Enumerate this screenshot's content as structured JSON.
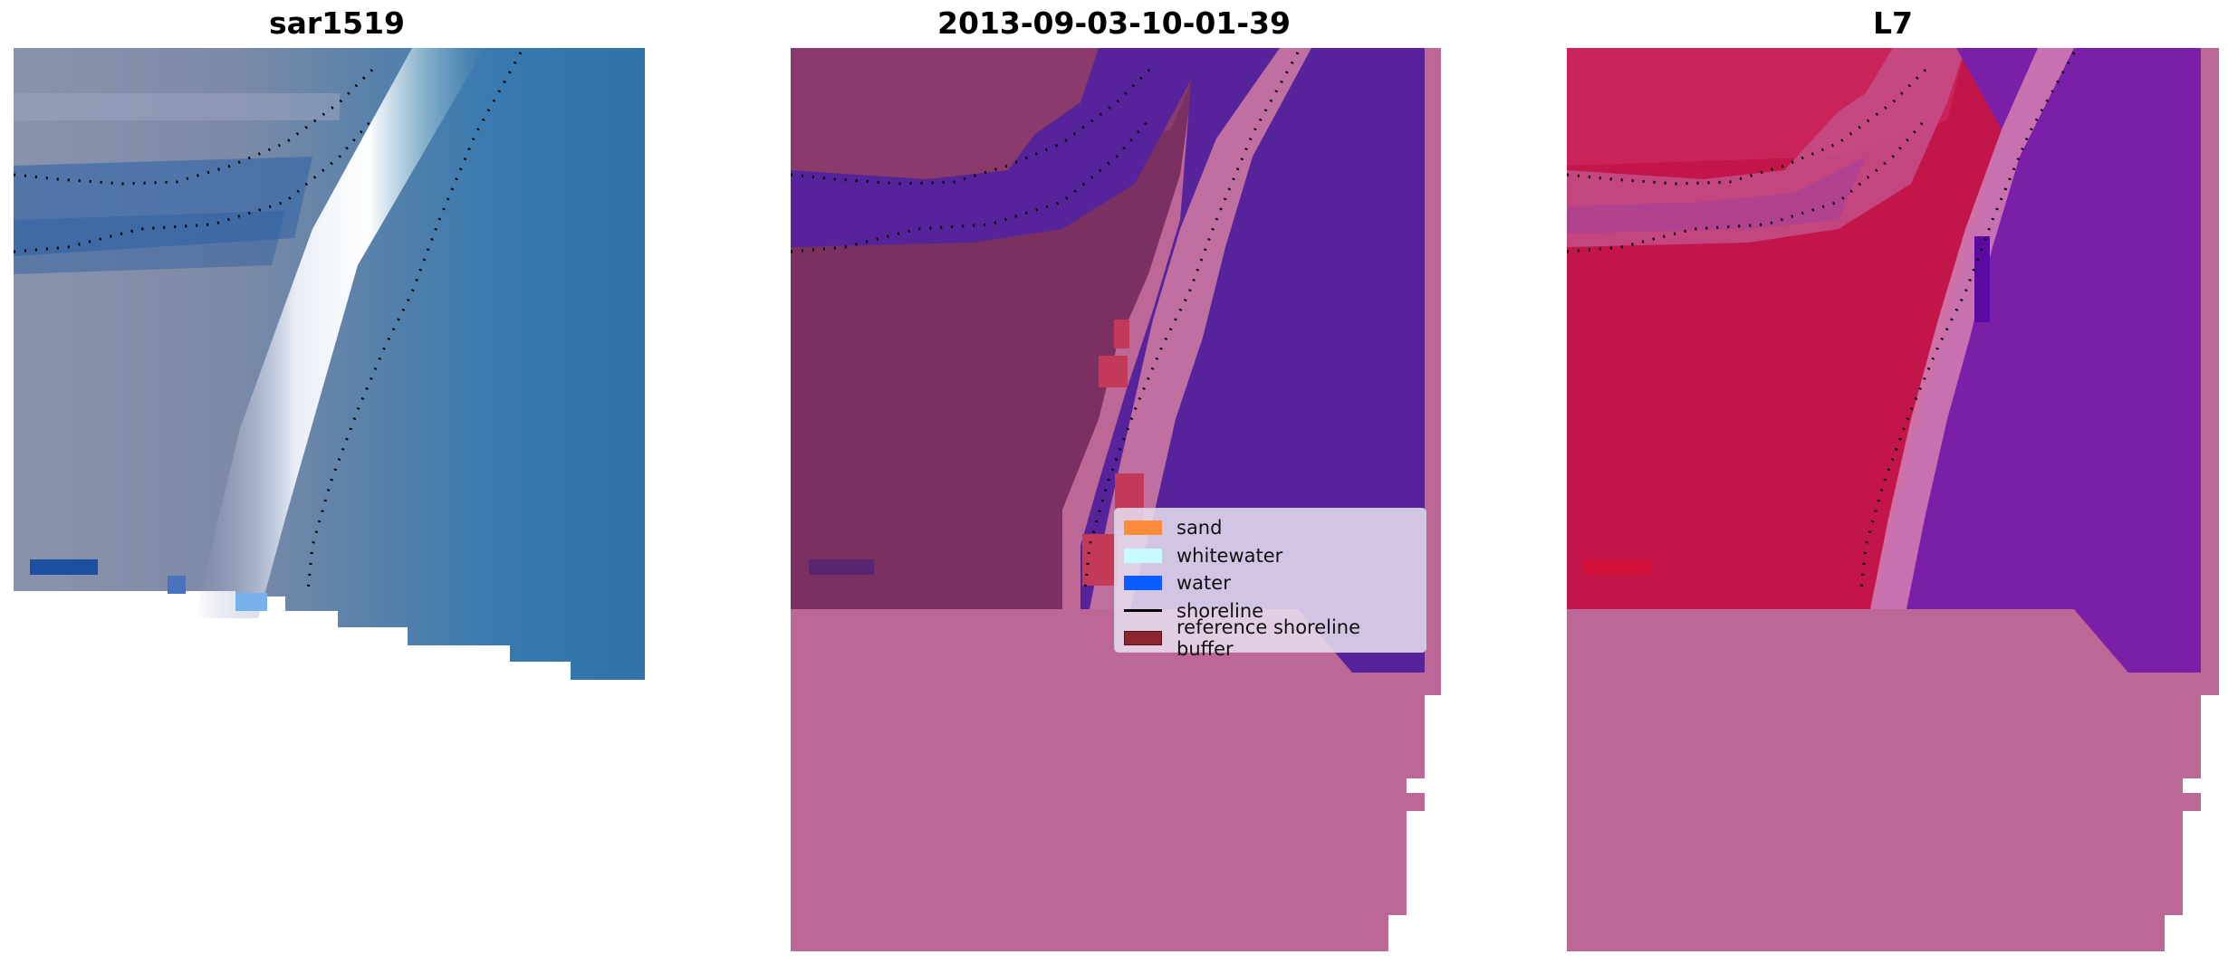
{
  "panels": [
    {
      "title": "sar1519"
    },
    {
      "title": "2013-09-03-10-01-39"
    },
    {
      "title": "L7"
    }
  ],
  "legend": {
    "items": [
      {
        "label": "sand",
        "color": "#ff8c3a",
        "kind": "patch"
      },
      {
        "label": "whitewater",
        "color": "#c6fbff",
        "kind": "patch"
      },
      {
        "label": "water",
        "color": "#0a5cff",
        "kind": "patch"
      },
      {
        "label": "shoreline",
        "color": "#000000",
        "kind": "line"
      },
      {
        "label": "reference shoreline buffer",
        "color": "#8b2530",
        "kind": "patch"
      }
    ]
  },
  "colors": {
    "nodata": "#bc6796",
    "water_overlay": "#56239a",
    "land_overlay": "#7a3060",
    "l7_land": "#c2164a",
    "l7_water": "#7a1fa8"
  }
}
